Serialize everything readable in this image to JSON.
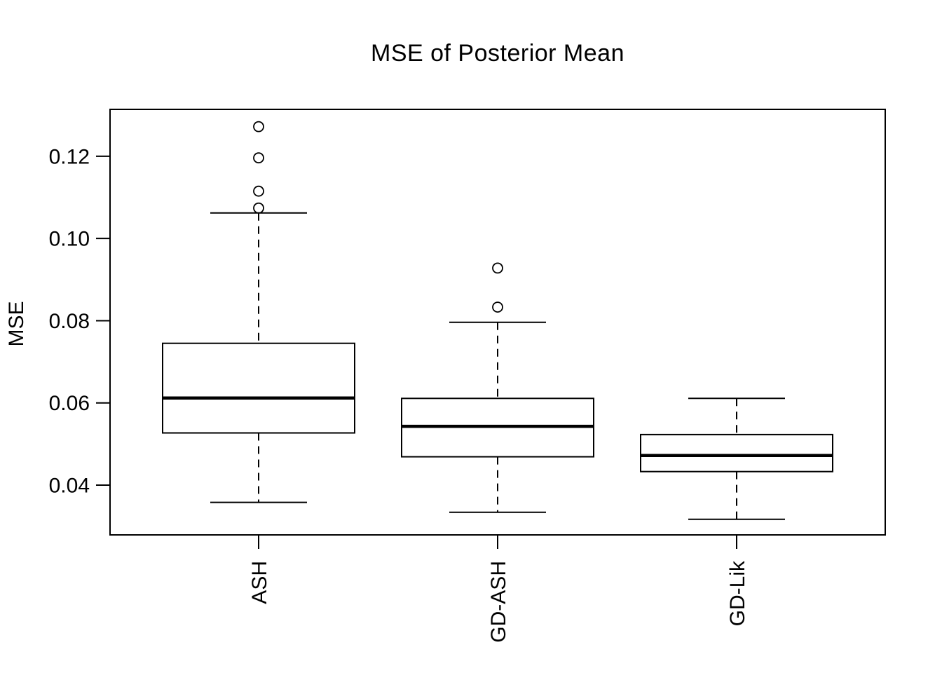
{
  "chart_data": {
    "type": "boxplot",
    "title": "MSE of Posterior Mean",
    "ylabel": "MSE",
    "xlabel": "",
    "categories": [
      "ASH",
      "GD-ASH",
      "GD-Lik"
    ],
    "y_ticks": [
      0.04,
      0.06,
      0.08,
      0.1,
      0.12
    ],
    "y_tick_labels": [
      "0.04",
      "0.06",
      "0.08",
      "0.10",
      "0.12"
    ],
    "ylim": [
      0.0279,
      0.1314
    ],
    "grid": false,
    "legend": "none",
    "series": [
      {
        "name": "ASH",
        "whisker_low": 0.0358,
        "q1": 0.0527,
        "median": 0.0612,
        "q3": 0.0745,
        "whisker_high": 0.1062,
        "outliers": [
          0.1074,
          0.1115,
          0.1196,
          0.1272
        ]
      },
      {
        "name": "GD-ASH",
        "whisker_low": 0.0334,
        "q1": 0.0469,
        "median": 0.0543,
        "q3": 0.0611,
        "whisker_high": 0.0796,
        "outliers": [
          0.0833,
          0.0928
        ]
      },
      {
        "name": "GD-Lik",
        "whisker_low": 0.0317,
        "q1": 0.0433,
        "median": 0.0472,
        "q3": 0.0523,
        "whisker_high": 0.0611,
        "outliers": []
      }
    ],
    "colors": {
      "line": "#000000",
      "box_fill": "#ffffff",
      "background": "#ffffff"
    }
  }
}
